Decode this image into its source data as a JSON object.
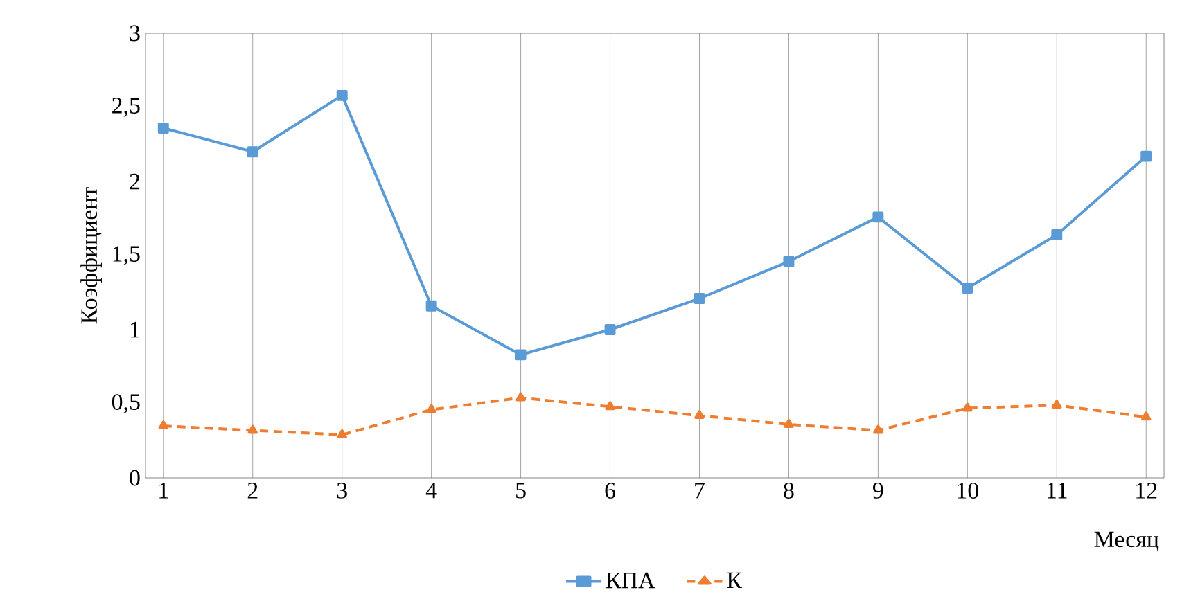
{
  "chart_data": {
    "type": "line",
    "xlabel": "Месяц",
    "ylabel": "Коэффициент",
    "categories": [
      "1",
      "2",
      "3",
      "4",
      "5",
      "6",
      "7",
      "8",
      "9",
      "10",
      "11",
      "12"
    ],
    "series": [
      {
        "name": "КПА",
        "color": "#5b9bd5",
        "marker": "square",
        "line_style": "solid",
        "values": [
          2.36,
          2.2,
          2.58,
          1.16,
          0.83,
          1.0,
          1.21,
          1.46,
          1.76,
          1.28,
          1.64,
          2.17
        ]
      },
      {
        "name": "К",
        "color": "#ed7d31",
        "marker": "triangle",
        "line_style": "dashed",
        "values": [
          0.35,
          0.32,
          0.29,
          0.46,
          0.54,
          0.48,
          0.42,
          0.36,
          0.32,
          0.47,
          0.49,
          0.41
        ]
      }
    ],
    "ylim": [
      0,
      3
    ],
    "yticks": [
      0,
      {
        "value": 0.5,
        "label": "0,5"
      },
      1,
      {
        "value": 1.5,
        "label": "1,5"
      },
      2,
      {
        "value": 2.5,
        "label": "2,5"
      },
      3
    ],
    "grid": "x",
    "legend": "bottom"
  }
}
